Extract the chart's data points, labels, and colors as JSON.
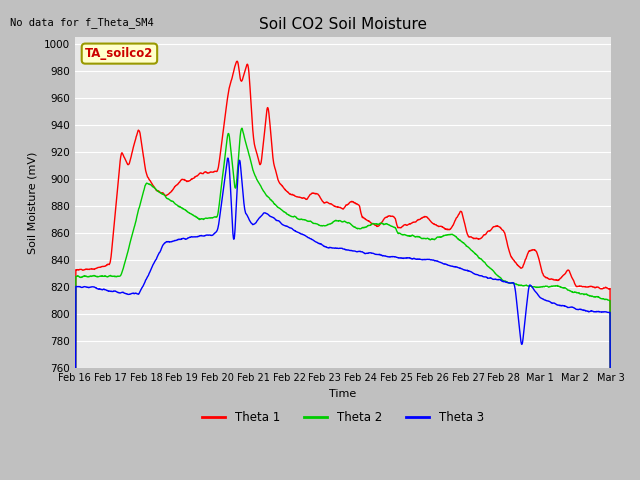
{
  "title": "Soil CO2 Soil Moisture",
  "xlabel": "Time",
  "ylabel": "Soil Moisture (mV)",
  "no_data_text": "No data for f_Theta_SM4",
  "annotation_text": "TA_soilco2",
  "ylim": [
    760,
    1005
  ],
  "yticks": [
    760,
    780,
    800,
    820,
    840,
    860,
    880,
    900,
    920,
    940,
    960,
    980,
    1000
  ],
  "fig_bg_color": "#c8c8c8",
  "plot_bg_color": "#e8e8e8",
  "grid_color": "#ffffff",
  "legend_labels": [
    "Theta 1",
    "Theta 2",
    "Theta 3"
  ],
  "legend_colors": [
    "#ff0000",
    "#00cc00",
    "#0000ff"
  ],
  "xtick_labels": [
    "Feb 16",
    "Feb 17",
    "Feb 18",
    "Feb 19",
    "Feb 20",
    "Feb 21",
    "Feb 22",
    "Feb 23",
    "Feb 24",
    "Feb 25",
    "Feb 26",
    "Feb 27",
    "Feb 28",
    "Mar 1",
    "Mar 2",
    "Mar 3"
  ]
}
